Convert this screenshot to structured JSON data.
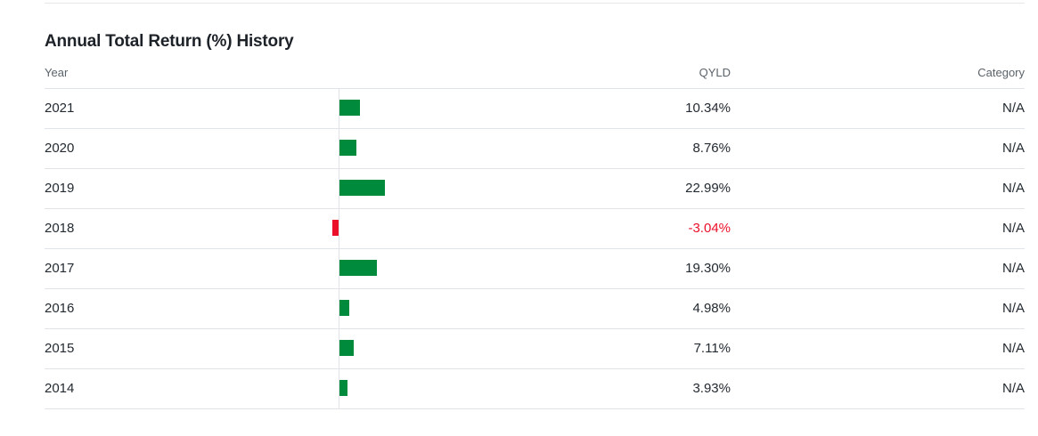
{
  "section": {
    "title": "Annual Total Return (%) History"
  },
  "table": {
    "headers": {
      "year": "Year",
      "fund": "QYLD",
      "category": "Category"
    },
    "rows": [
      {
        "year": "2021",
        "value": 10.34,
        "return": "10.34%",
        "category": "N/A"
      },
      {
        "year": "2020",
        "value": 8.76,
        "return": "8.76%",
        "category": "N/A"
      },
      {
        "year": "2019",
        "value": 22.99,
        "return": "22.99%",
        "category": "N/A"
      },
      {
        "year": "2018",
        "value": -3.04,
        "return": "-3.04%",
        "category": "N/A"
      },
      {
        "year": "2017",
        "value": 19.3,
        "return": "19.30%",
        "category": "N/A"
      },
      {
        "year": "2016",
        "value": 4.98,
        "return": "4.98%",
        "category": "N/A"
      },
      {
        "year": "2015",
        "value": 7.11,
        "return": "7.11%",
        "category": "N/A"
      },
      {
        "year": "2014",
        "value": 3.93,
        "return": "3.93%",
        "category": "N/A"
      }
    ]
  },
  "colors": {
    "positive": "#008a3b",
    "negative": "#eb0f29"
  }
}
